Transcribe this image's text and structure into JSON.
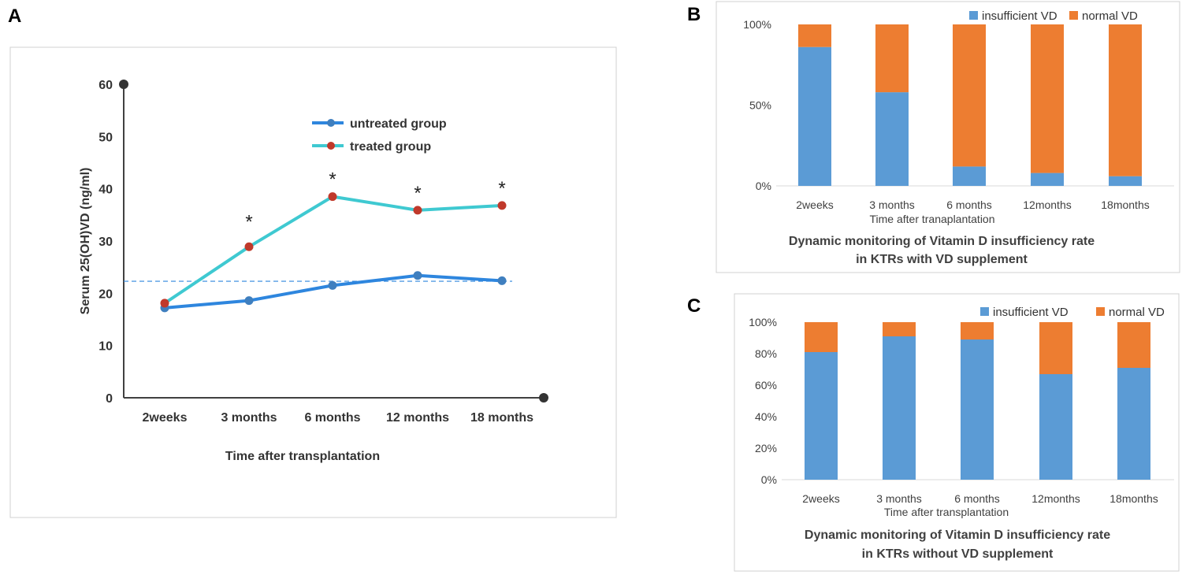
{
  "chart_data": [
    {
      "panel": "A",
      "type": "line",
      "ylabel": "Serum 25(OH)VD (ng/ml)",
      "xlabel": "Time after transplantation",
      "categories": [
        "2weeks",
        "3 months",
        "6 months",
        "12 months",
        "18 months"
      ],
      "ylim": [
        0,
        60
      ],
      "yticks": [
        0,
        10,
        20,
        30,
        40,
        50,
        60
      ],
      "series": [
        {
          "name": "untreated group",
          "color": "#2e86de",
          "marker": "#3f7fbf",
          "values": [
            17.2,
            18.6,
            21.5,
            23.4,
            22.4
          ]
        },
        {
          "name": "treated group",
          "color": "#3fc9d1",
          "marker": "#c0392b",
          "values": [
            18.1,
            28.9,
            38.5,
            35.9,
            36.8
          ]
        }
      ],
      "reference_line": 22.3,
      "annotations": [
        "",
        "*",
        "*",
        "*",
        "*"
      ]
    },
    {
      "panel": "B",
      "type": "bar",
      "stacked": true,
      "title_lines": [
        "Dynamic monitoring of Vitamin D insufficiency rate",
        "in KTRs with VD supplement"
      ],
      "xlabel": "Time after tranaplantation",
      "categories": [
        "2weeks",
        "3 months",
        "6 months",
        "12months",
        "18months"
      ],
      "ylim": [
        0,
        100
      ],
      "yticks": [
        "0%",
        "50%",
        "100%"
      ],
      "ytick_values": [
        0,
        50,
        100
      ],
      "series": [
        {
          "name": "insufficient VD",
          "color": "#5b9bd5",
          "values": [
            86,
            58,
            12,
            8,
            6
          ]
        },
        {
          "name": "normal VD",
          "color": "#ed7d31",
          "values": [
            14,
            42,
            88,
            92,
            94
          ]
        }
      ]
    },
    {
      "panel": "C",
      "type": "bar",
      "stacked": true,
      "title_lines": [
        "Dynamic monitoring of Vitamin D insufficiency rate",
        "in KTRs without VD supplement"
      ],
      "xlabel": "Time after transplantation",
      "categories": [
        "2weeks",
        "3 months",
        "6 months",
        "12months",
        "18months"
      ],
      "ylim": [
        0,
        100
      ],
      "yticks": [
        "0%",
        "20%",
        "40%",
        "60%",
        "80%",
        "100%"
      ],
      "ytick_values": [
        0,
        20,
        40,
        60,
        80,
        100
      ],
      "series": [
        {
          "name": "insufficient VD",
          "color": "#5b9bd5",
          "values": [
            81,
            91,
            89,
            67,
            71
          ]
        },
        {
          "name": "normal VD",
          "color": "#ed7d31",
          "values": [
            19,
            9,
            11,
            33,
            29
          ]
        }
      ]
    }
  ]
}
